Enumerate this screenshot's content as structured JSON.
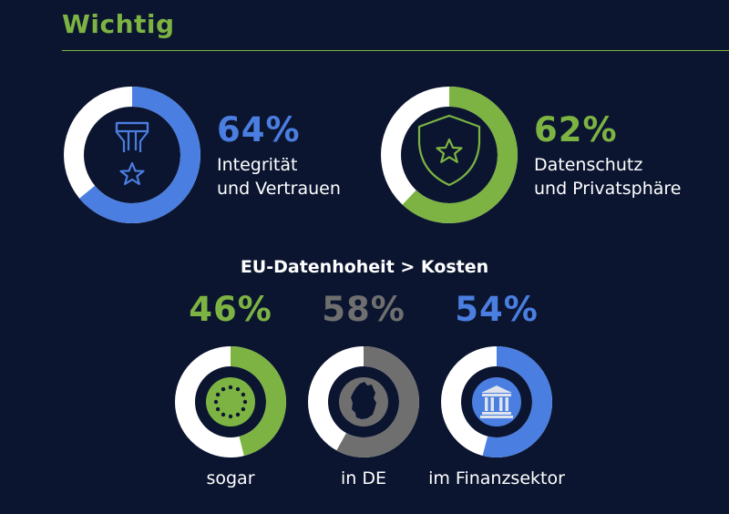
{
  "header": {
    "title": "Wichtig"
  },
  "subheading": "EU-Datenhoheit > Kosten",
  "colors": {
    "background": "#0b1530",
    "green": "#7cb342",
    "blue": "#4a7ee0",
    "gray": "#6f6f6f",
    "track": "#ffffff"
  },
  "chart_data": {
    "type": "pie",
    "title": "Wichtig",
    "series": [
      {
        "name": "Integrität und Vertrauen",
        "value": 64,
        "percent_label": "64%",
        "label_line1": "Integrität",
        "label_line2": "und Vertrauen",
        "color": "#4a7ee0",
        "icon": "medal-icon"
      },
      {
        "name": "Datenschutz und Privatsphäre",
        "value": 62,
        "percent_label": "62%",
        "label_line1": "Datenschutz",
        "label_line2": "und Privatsphäre",
        "color": "#7cb342",
        "icon": "shield-star-icon"
      }
    ],
    "sub_chart": {
      "title": "EU-Datenhoheit > Kosten",
      "series": [
        {
          "name": "sogar",
          "value": 46,
          "percent_label": "46%",
          "label": "sogar",
          "color": "#7cb342",
          "icon": "eu-stars-icon"
        },
        {
          "name": "in DE",
          "value": 58,
          "percent_label": "58%",
          "label": "in DE",
          "color": "#6f6f6f",
          "icon": "germany-map-icon"
        },
        {
          "name": "im Finanzsektor",
          "value": 54,
          "percent_label": "54%",
          "label": "im Finanzsektor",
          "color": "#4a7ee0",
          "icon": "bank-icon"
        }
      ]
    }
  }
}
